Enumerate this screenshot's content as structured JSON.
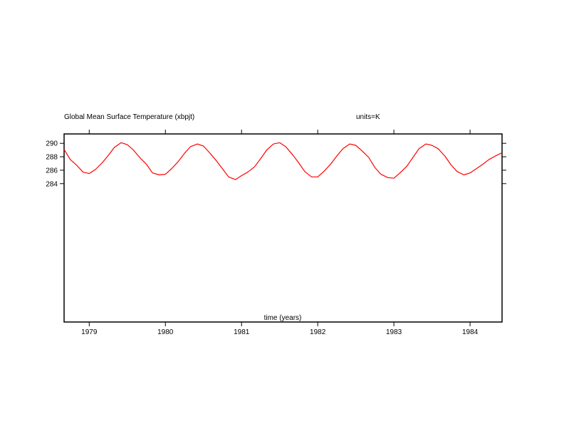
{
  "chart_data": {
    "type": "line",
    "title": "Global Mean Surface Temperature (xbpjt)",
    "units_label": "units=K",
    "xlabel": "time (years)",
    "ylabel": "",
    "xlim": [
      1978.67,
      1984.42
    ],
    "ylim": [
      263.4,
      291.4
    ],
    "x_ticks": [
      1979,
      1980,
      1981,
      1982,
      1983,
      1984
    ],
    "x_tick_labels": [
      "1979",
      "1980",
      "1981",
      "1982",
      "1983",
      "1984"
    ],
    "y_ticks": [
      284,
      286,
      288,
      290
    ],
    "y_tick_labels": [
      "284",
      "286",
      "288",
      "290"
    ],
    "grid": false,
    "legend": "none",
    "series": [
      {
        "color": "#ff0000",
        "x": [
          1978.67,
          1978.75,
          1978.83,
          1978.92,
          1979.0,
          1979.08,
          1979.17,
          1979.25,
          1979.33,
          1979.42,
          1979.5,
          1979.58,
          1979.67,
          1979.75,
          1979.83,
          1979.92,
          1980.0,
          1980.08,
          1980.17,
          1980.25,
          1980.33,
          1980.42,
          1980.5,
          1980.58,
          1980.67,
          1980.75,
          1980.83,
          1980.92,
          1981.0,
          1981.08,
          1981.17,
          1981.25,
          1981.33,
          1981.42,
          1981.5,
          1981.58,
          1981.67,
          1981.75,
          1981.83,
          1981.92,
          1982.0,
          1982.08,
          1982.17,
          1982.25,
          1982.33,
          1982.42,
          1982.5,
          1982.58,
          1982.67,
          1982.75,
          1982.83,
          1982.92,
          1983.0,
          1983.08,
          1983.17,
          1983.25,
          1983.33,
          1983.42,
          1983.5,
          1983.58,
          1983.67,
          1983.75,
          1983.83,
          1983.92,
          1984.0,
          1984.08,
          1984.17,
          1984.25,
          1984.33,
          1984.42
        ],
        "y": [
          289.1,
          287.6,
          286.8,
          285.7,
          285.5,
          286.1,
          287.1,
          288.2,
          289.4,
          290.1,
          289.8,
          289.0,
          287.8,
          286.9,
          285.6,
          285.3,
          285.4,
          286.2,
          287.3,
          288.5,
          289.5,
          289.9,
          289.6,
          288.6,
          287.4,
          286.2,
          285.0,
          284.6,
          285.2,
          285.7,
          286.5,
          287.7,
          289.0,
          289.9,
          290.1,
          289.5,
          288.3,
          287.1,
          285.8,
          285.0,
          285.0,
          285.8,
          286.9,
          288.1,
          289.2,
          289.9,
          289.7,
          288.9,
          287.9,
          286.4,
          285.4,
          284.9,
          284.8,
          285.6,
          286.6,
          287.9,
          289.2,
          289.9,
          289.7,
          289.2,
          288.1,
          286.8,
          285.8,
          285.3,
          285.6,
          286.2,
          286.9,
          287.6,
          288.1,
          288.6
        ]
      }
    ]
  }
}
